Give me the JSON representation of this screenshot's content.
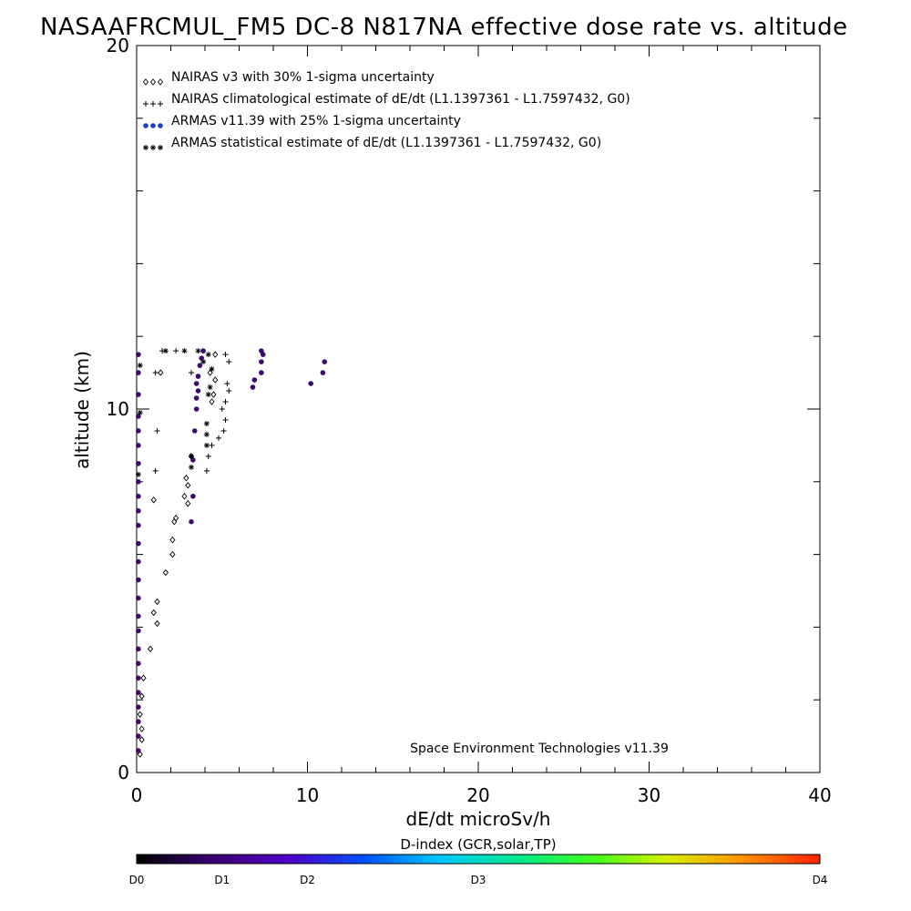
{
  "title": "NASAAFRCMUL_FM5 DC-8   N817NA effective dose rate vs. altitude",
  "chart_data": {
    "type": "scatter",
    "title": "NASAAFRCMUL_FM5 DC-8   N817NA effective dose rate vs. altitude",
    "xlabel": "dE/dt microSv/h",
    "ylabel": "altitude (km)",
    "xlim": [
      0,
      40
    ],
    "ylim": [
      0,
      20
    ],
    "x_ticks": [
      "0",
      "10",
      "20",
      "30",
      "40"
    ],
    "y_ticks": [
      "0",
      "10",
      "20"
    ],
    "grid": false,
    "legend_placement": "top-left",
    "legend": [
      {
        "marker": "◊◊◊",
        "label": "NAIRAS v3 with 30% 1-sigma uncertainty"
      },
      {
        "marker": "+++",
        "label": "NAIRAS climatological estimate of dE/dt (L1.1397361 - L1.7597432, G0)"
      },
      {
        "marker": "●●●",
        "label": "ARMAS v11.39 with 25% 1-sigma uncertainty"
      },
      {
        "marker": "***",
        "label": "ARMAS statistical estimate of dE/dt (L1.1397361 - L1.7597432, G0)"
      }
    ],
    "annotation": "Space Environment Technologies v11.39",
    "series": [
      {
        "name": "NAIRAS v3 with 30% 1-sigma uncertainty",
        "marker": "diamond",
        "color": "#000000",
        "points": [
          [
            0.2,
            0.5
          ],
          [
            0.3,
            0.9
          ],
          [
            0.3,
            1.2
          ],
          [
            0.2,
            1.6
          ],
          [
            0.3,
            2.1
          ],
          [
            0.4,
            2.6
          ],
          [
            0.8,
            3.4
          ],
          [
            1.2,
            4.1
          ],
          [
            1.0,
            4.4
          ],
          [
            1.2,
            4.7
          ],
          [
            1.7,
            5.5
          ],
          [
            2.1,
            6.0
          ],
          [
            2.1,
            6.4
          ],
          [
            2.2,
            6.9
          ],
          [
            2.3,
            7.0
          ],
          [
            3.0,
            7.4
          ],
          [
            2.8,
            7.6
          ],
          [
            1.0,
            7.5
          ],
          [
            3.0,
            7.9
          ],
          [
            2.9,
            8.1
          ],
          [
            3.2,
            8.7
          ],
          [
            4.4,
            10.2
          ],
          [
            4.5,
            10.4
          ],
          [
            4.6,
            10.8
          ],
          [
            4.3,
            11.0
          ],
          [
            1.4,
            11.0
          ],
          [
            4.6,
            11.5
          ]
        ]
      },
      {
        "name": "NAIRAS climatological estimate of dE/dt (L1.1397361 - L1.7597432, G0)",
        "marker": "plus",
        "color": "#000000",
        "points": [
          [
            1.1,
            8.3
          ],
          [
            4.1,
            8.3
          ],
          [
            4.2,
            8.7
          ],
          [
            4.4,
            9.0
          ],
          [
            4.8,
            9.2
          ],
          [
            5.1,
            9.4
          ],
          [
            1.2,
            9.4
          ],
          [
            5.2,
            9.7
          ],
          [
            5.0,
            10.0
          ],
          [
            5.2,
            10.2
          ],
          [
            5.4,
            10.5
          ],
          [
            5.3,
            10.7
          ],
          [
            3.2,
            11.0
          ],
          [
            1.1,
            11.0
          ],
          [
            5.4,
            11.3
          ],
          [
            5.2,
            11.5
          ],
          [
            1.5,
            11.6
          ],
          [
            2.3,
            11.6
          ]
        ]
      },
      {
        "name": "ARMAS v11.39 with 25% 1-sigma uncertainty",
        "marker": "dot",
        "color": "#3d0a6b",
        "points": [
          [
            0.1,
            0.6
          ],
          [
            0.1,
            1.0
          ],
          [
            0.1,
            1.4
          ],
          [
            0.1,
            1.8
          ],
          [
            0.1,
            2.2
          ],
          [
            0.1,
            2.6
          ],
          [
            0.1,
            3.0
          ],
          [
            0.1,
            3.4
          ],
          [
            0.1,
            3.9
          ],
          [
            0.1,
            4.3
          ],
          [
            0.1,
            4.8
          ],
          [
            0.1,
            5.3
          ],
          [
            0.1,
            5.8
          ],
          [
            0.1,
            6.3
          ],
          [
            0.1,
            6.8
          ],
          [
            0.1,
            7.2
          ],
          [
            0.1,
            7.6
          ],
          [
            0.1,
            8.0
          ],
          [
            0.1,
            8.5
          ],
          [
            0.1,
            9.0
          ],
          [
            0.1,
            9.4
          ],
          [
            0.1,
            9.8
          ],
          [
            0.1,
            10.4
          ],
          [
            0.1,
            11.0
          ],
          [
            0.1,
            11.5
          ],
          [
            3.2,
            6.9
          ],
          [
            3.3,
            7.6
          ],
          [
            3.3,
            8.6
          ],
          [
            3.4,
            9.4
          ],
          [
            3.5,
            10.0
          ],
          [
            3.5,
            10.3
          ],
          [
            3.6,
            10.5
          ],
          [
            3.5,
            10.7
          ],
          [
            3.6,
            10.9
          ],
          [
            3.7,
            11.2
          ],
          [
            3.8,
            11.4
          ],
          [
            3.9,
            11.6
          ],
          [
            6.8,
            10.6
          ],
          [
            6.9,
            10.8
          ],
          [
            7.3,
            11.0
          ],
          [
            7.3,
            11.3
          ],
          [
            7.4,
            11.5
          ],
          [
            7.3,
            11.6
          ],
          [
            10.2,
            10.7
          ],
          [
            10.9,
            11.0
          ],
          [
            11.0,
            11.3
          ]
        ]
      },
      {
        "name": "ARMAS statistical estimate of dE/dt (L1.1397361 - L1.7597432, G0)",
        "marker": "star",
        "color": "#000000",
        "points": [
          [
            0.1,
            8.2
          ],
          [
            0.2,
            9.9
          ],
          [
            0.2,
            11.2
          ],
          [
            3.2,
            8.4
          ],
          [
            3.2,
            8.7
          ],
          [
            4.1,
            9.0
          ],
          [
            4.1,
            9.3
          ],
          [
            4.1,
            9.6
          ],
          [
            4.2,
            10.4
          ],
          [
            4.3,
            10.6
          ],
          [
            4.4,
            11.1
          ],
          [
            3.9,
            11.3
          ],
          [
            1.7,
            11.6
          ],
          [
            2.8,
            11.6
          ],
          [
            3.6,
            11.6
          ],
          [
            4.2,
            11.5
          ]
        ]
      }
    ]
  },
  "colorbar": {
    "title": "D-index (GCR,solar,TP)",
    "ticks": [
      {
        "label": "D0",
        "value": 0.0
      },
      {
        "label": "D1",
        "value": 0.125
      },
      {
        "label": "D2",
        "value": 0.25
      },
      {
        "label": "D3",
        "value": 0.5
      },
      {
        "label": "D4",
        "value": 1.0
      }
    ],
    "stops": [
      "#000000",
      "#3a0070",
      "#5000c8",
      "#0050ff",
      "#00c8ff",
      "#00e890",
      "#40ff20",
      "#d8f000",
      "#ff9000",
      "#ff2000"
    ]
  },
  "colors": {
    "axis": "#000000",
    "background": "#ffffff",
    "armas": "#3d0a6b",
    "legend_armas_marker": "#1a3fbf"
  }
}
